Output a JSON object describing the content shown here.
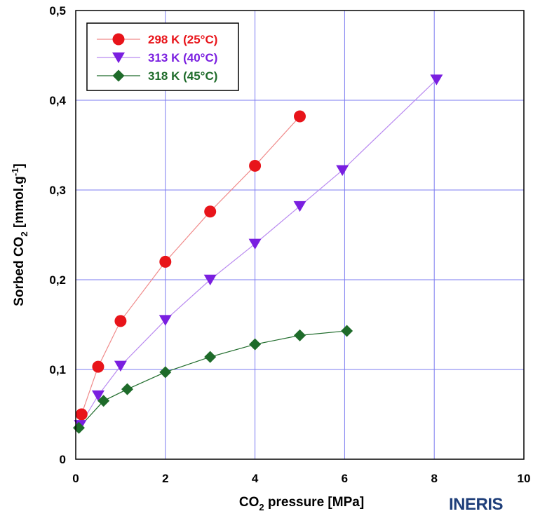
{
  "chart_data": {
    "type": "line",
    "xlabel": {
      "main": "CO",
      "sub": "2",
      "rest": " pressure [MPa]"
    },
    "ylabel": {
      "a": "Sorbed CO",
      "sub": "2",
      "b": " [mmol.g",
      "sup": "-1",
      "c": "]"
    },
    "xlim": [
      0,
      10
    ],
    "ylim": [
      0,
      0.5
    ],
    "xticks": [
      0,
      2,
      4,
      6,
      8,
      10
    ],
    "xtick_labels": [
      "0",
      "2",
      "4",
      "6",
      "8",
      "10"
    ],
    "yticks": [
      0,
      0.1,
      0.2,
      0.3,
      0.4,
      0.5
    ],
    "ytick_labels": [
      "0",
      "0,1",
      "0,2",
      "0,3",
      "0,4",
      "0,5"
    ],
    "grid": true,
    "legend_position": "top-left",
    "series": [
      {
        "name": "298 K (25°C)",
        "color": "#e8141a",
        "line_color": "#f08a8a",
        "marker": "circle",
        "x": [
          0.13,
          0.5,
          1.0,
          2.0,
          3.0,
          4.0,
          5.0
        ],
        "y": [
          0.05,
          0.103,
          0.154,
          0.22,
          0.276,
          0.327,
          0.382
        ]
      },
      {
        "name": "313 K (40°C)",
        "color": "#7a1fe0",
        "line_color": "#b98af0",
        "marker": "triangle-down",
        "x": [
          0.1,
          0.5,
          1.0,
          2.0,
          3.0,
          4.0,
          5.0,
          5.95,
          8.05
        ],
        "y": [
          0.038,
          0.071,
          0.104,
          0.155,
          0.2,
          0.24,
          0.282,
          0.322,
          0.423
        ]
      },
      {
        "name": "318 K (45°C)",
        "color": "#1e6b2a",
        "line_color": "#1e6b2a",
        "marker": "diamond",
        "x": [
          0.07,
          0.62,
          1.15,
          2.0,
          3.0,
          4.0,
          5.0,
          6.05
        ],
        "y": [
          0.035,
          0.065,
          0.078,
          0.097,
          0.114,
          0.128,
          0.138,
          0.143
        ]
      }
    ]
  },
  "logo": {
    "text": "INERIS"
  }
}
